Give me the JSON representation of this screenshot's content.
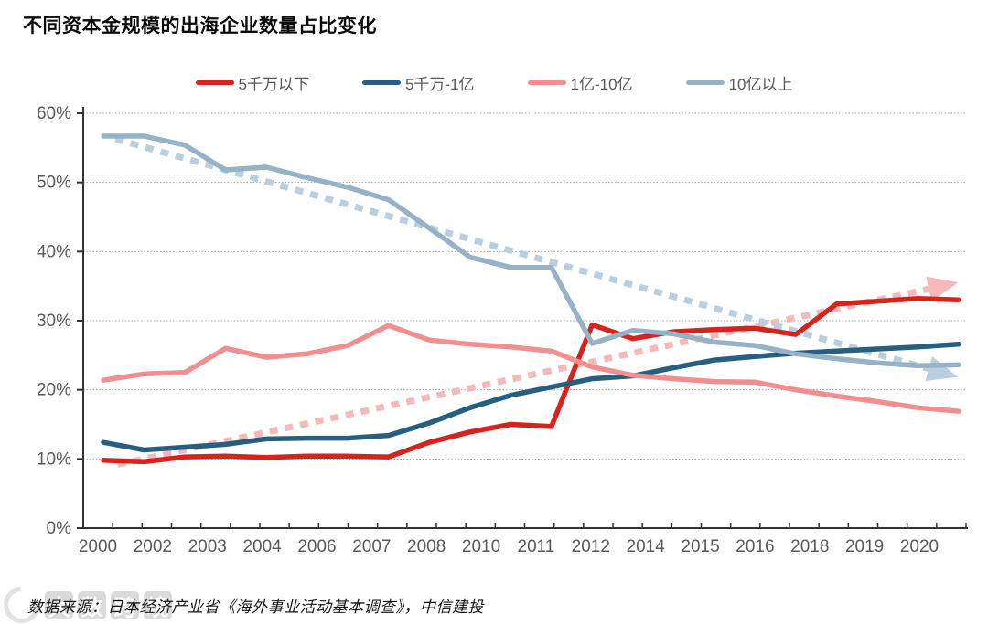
{
  "title": "不同资本金规模的出海企业数量占比变化",
  "legend": [
    {
      "label": "5千万以下",
      "color": "#d7231d"
    },
    {
      "label": "5千万-1亿",
      "color": "#275f80"
    },
    {
      "label": "1亿-10亿",
      "color": "#f18f90"
    },
    {
      "label": "10亿以上",
      "color": "#96b2c7"
    }
  ],
  "source_note": "数据来源：日本经济产业省《海外事业活动基本调查》，中信建投",
  "watermark_text": [
    "大",
    "数",
    "跨",
    "境"
  ],
  "chart_data": {
    "type": "line",
    "x": [
      2000,
      2001,
      2002,
      2003,
      2004,
      2005,
      2006,
      2007,
      2008,
      2009,
      2010,
      2011,
      2012,
      2013,
      2014,
      2015,
      2016,
      2017,
      2018,
      2019,
      2020,
      2021
    ],
    "x_tick_labels": [
      "2000",
      "2002",
      "2003",
      "2004",
      "2006",
      "2007",
      "2008",
      "2010",
      "2011",
      "2012",
      "2014",
      "2015",
      "2016",
      "2018",
      "2019",
      "2020"
    ],
    "y_ticks": [
      "0%",
      "10%",
      "20%",
      "30%",
      "40%",
      "50%",
      "60%"
    ],
    "ylim": [
      0,
      60
    ],
    "grid": true,
    "legend_position": "top",
    "series": [
      {
        "name": "5千万以下",
        "color": "#d7231d",
        "width": 5.5,
        "values": [
          9.8,
          9.6,
          10.3,
          10.4,
          10.2,
          10.4,
          10.4,
          10.3,
          12.4,
          13.9,
          15.0,
          14.7,
          29.4,
          27.4,
          28.4,
          28.7,
          28.9,
          28.0,
          32.4,
          32.8,
          33.2,
          33.0
        ]
      },
      {
        "name": "5千万-1亿",
        "color": "#275f80",
        "width": 5.5,
        "values": [
          12.4,
          11.3,
          11.7,
          12.1,
          12.9,
          13.0,
          13.0,
          13.4,
          15.2,
          17.4,
          19.2,
          20.4,
          21.6,
          22.0,
          23.2,
          24.3,
          24.8,
          25.3,
          25.6,
          25.9,
          26.2,
          26.6
        ]
      },
      {
        "name": "1亿-10亿",
        "color": "#f18f90",
        "width": 5.5,
        "values": [
          21.4,
          22.3,
          22.5,
          26.0,
          24.7,
          25.2,
          26.4,
          29.3,
          27.2,
          26.6,
          26.2,
          25.6,
          23.3,
          22.1,
          21.6,
          21.2,
          21.1,
          20.0,
          19.1,
          18.3,
          17.4,
          16.9
        ]
      },
      {
        "name": "10亿以上",
        "color": "#96b2c7",
        "width": 5.5,
        "values": [
          56.7,
          56.7,
          55.4,
          51.8,
          52.2,
          50.7,
          49.3,
          47.5,
          43.4,
          39.2,
          37.7,
          37.7,
          26.7,
          28.6,
          28.1,
          26.9,
          26.4,
          25.2,
          24.5,
          23.9,
          23.5,
          23.6
        ]
      }
    ],
    "trendlines": [
      {
        "for": "5千万以下",
        "color": "#f6b8ba",
        "style": "dashed",
        "arrow": true,
        "from": [
          2000.35,
          9.2
        ],
        "to": [
          2020.35,
          34.7
        ]
      },
      {
        "for": "10亿以上",
        "color": "#b9cfe0",
        "style": "dashed",
        "arrow": true,
        "from": [
          2000.3,
          56.3
        ],
        "to": [
          2020.35,
          22.9
        ]
      }
    ]
  }
}
